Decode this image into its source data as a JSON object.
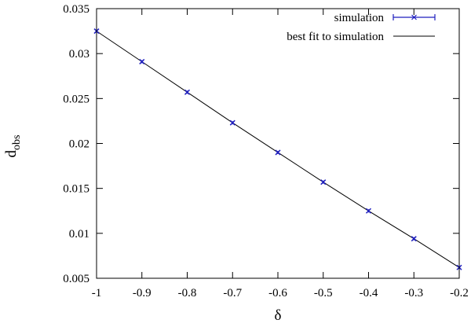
{
  "chart_data": {
    "type": "scatter",
    "xlabel": "δ",
    "ylabel_main": "d",
    "ylabel_sub": "obs",
    "xlim": [
      -1,
      -0.2
    ],
    "ylim": [
      0.005,
      0.035
    ],
    "x_ticks": [
      -1,
      -0.9,
      -0.8,
      -0.7,
      -0.6,
      -0.5,
      -0.4,
      -0.3,
      -0.2
    ],
    "x_tick_labels": [
      "-1",
      "-0.9",
      "-0.8",
      "-0.7",
      "-0.6",
      "-0.5",
      "-0.4",
      "-0.3",
      "-0.2"
    ],
    "y_ticks": [
      0.005,
      0.01,
      0.015,
      0.02,
      0.025,
      0.03,
      0.035
    ],
    "y_tick_labels": [
      "0.005",
      "0.01",
      "0.015",
      "0.02",
      "0.025",
      "0.03",
      "0.035"
    ],
    "legend_position": "top-right",
    "grid": false,
    "series": [
      {
        "name": "simulation",
        "kind": "points-with-errorbars",
        "color": "#1f1fbf",
        "x": [
          -1.0,
          -0.9,
          -0.8,
          -0.7,
          -0.6,
          -0.5,
          -0.4,
          -0.3,
          -0.2
        ],
        "y": [
          0.0325,
          0.0291,
          0.0257,
          0.0223,
          0.019,
          0.0157,
          0.0125,
          0.0094,
          0.0062
        ]
      },
      {
        "name": "best fit to simulation",
        "kind": "line",
        "color": "#000000",
        "x": [
          -1.0,
          -0.9,
          -0.8,
          -0.7,
          -0.6,
          -0.5,
          -0.4,
          -0.3,
          -0.2
        ],
        "y": [
          0.0325,
          0.0291,
          0.0257,
          0.0223,
          0.019,
          0.0157,
          0.0125,
          0.0094,
          0.0062
        ]
      }
    ]
  }
}
